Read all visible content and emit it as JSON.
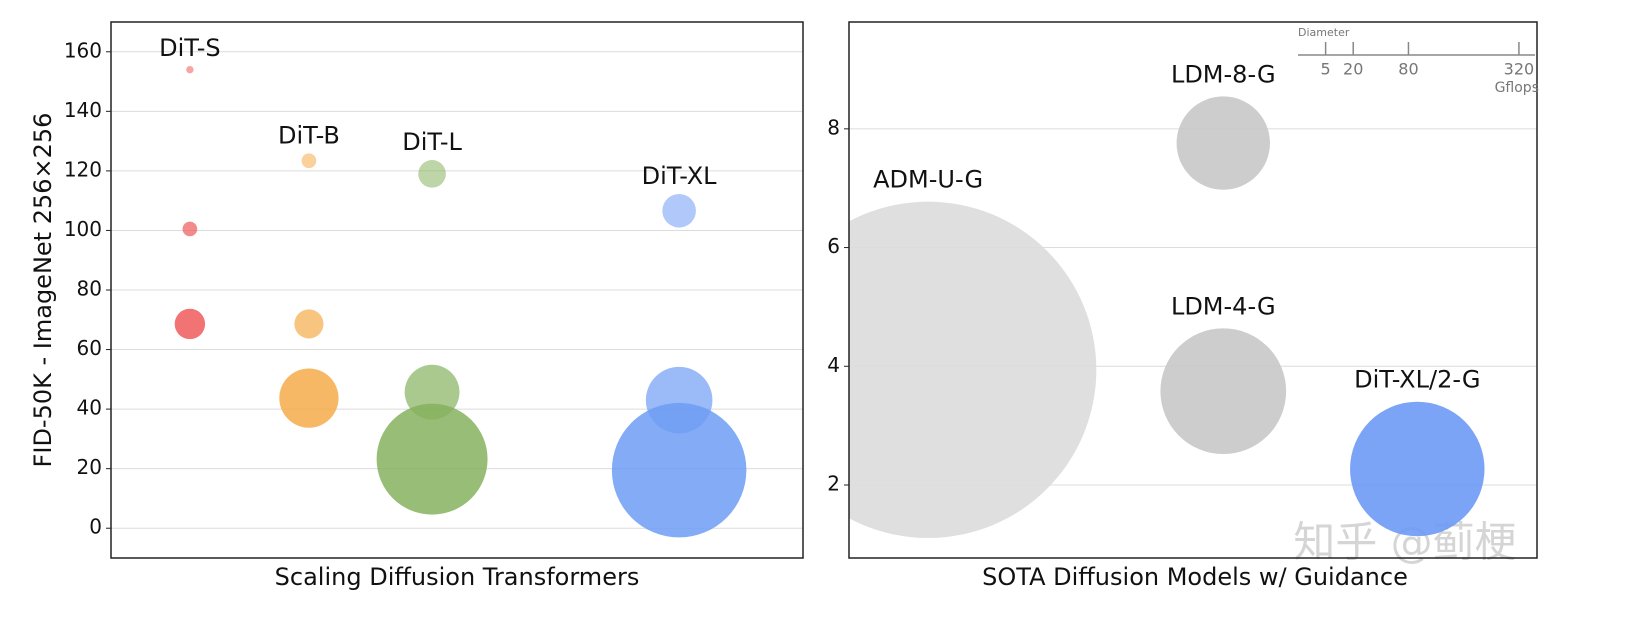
{
  "chart_data": [
    {
      "type": "bubble",
      "x_label": "Scaling Diffusion Transformers",
      "y_label": "FID-50K - ImageNet 256×256",
      "xlim": [
        0,
        100
      ],
      "ylim": [
        -10,
        170
      ],
      "yticks": [
        0,
        20,
        40,
        60,
        80,
        100,
        120,
        140,
        160
      ],
      "grid": true,
      "series": [
        {
          "name": "DiT-S",
          "color": "#ee5a5a",
          "x": [
            11.4,
            11.4,
            11.4
          ],
          "values": [
            154,
            100.5,
            68.6
          ],
          "sizes": [
            0.36,
            1.41,
            6.06
          ]
        },
        {
          "name": "DiT-B",
          "color": "#f5ac4a",
          "x": [
            28.6,
            28.6,
            28.6
          ],
          "values": [
            123.4,
            68.6,
            43.7
          ],
          "sizes": [
            1.42,
            5.56,
            23.01
          ]
        },
        {
          "name": "DiT-L",
          "color": "#86b25e",
          "x": [
            46.4,
            46.4,
            46.4
          ],
          "values": [
            119,
            45.7,
            23.2
          ],
          "sizes": [
            5.0,
            19.7,
            80.71
          ]
        },
        {
          "name": "DiT-XL",
          "color": "#6f9cf5",
          "x": [
            82.1,
            82.1,
            82.1
          ],
          "values": [
            106.6,
            43,
            19.5
          ],
          "sizes": [
            7.4,
            29.05,
            118.64
          ]
        }
      ]
    },
    {
      "type": "bubble",
      "x_label": "SOTA Diffusion Models w/ Guidance",
      "xlim": [
        0,
        100
      ],
      "ylim": [
        0.77,
        9.8
      ],
      "yticks": [
        2,
        4,
        6,
        8
      ],
      "grid": true,
      "series": [
        {
          "name": "ADM-U-G",
          "color": "#dcdcdc",
          "x": [
            11.5
          ],
          "values": [
            3.94
          ],
          "sizes": [
            742
          ]
        },
        {
          "name": "LDM-8-G",
          "color": "#c8c8c8",
          "x": [
            54.4
          ],
          "values": [
            7.76
          ],
          "sizes": [
            57.2
          ]
        },
        {
          "name": "LDM-4-G",
          "color": "#c8c8c8",
          "x": [
            54.4
          ],
          "values": [
            3.58
          ],
          "sizes": [
            103.6
          ]
        },
        {
          "name": "DiT-XL/2-G",
          "color": "#6e9af5",
          "x": [
            82.6
          ],
          "values": [
            2.27
          ],
          "sizes": [
            118.6
          ]
        }
      ],
      "size_legend": {
        "title": "Diameter",
        "ticks": [
          5,
          20,
          80,
          320
        ],
        "unit": "Gflops"
      }
    }
  ],
  "watermark": "知乎 @蓟梗"
}
